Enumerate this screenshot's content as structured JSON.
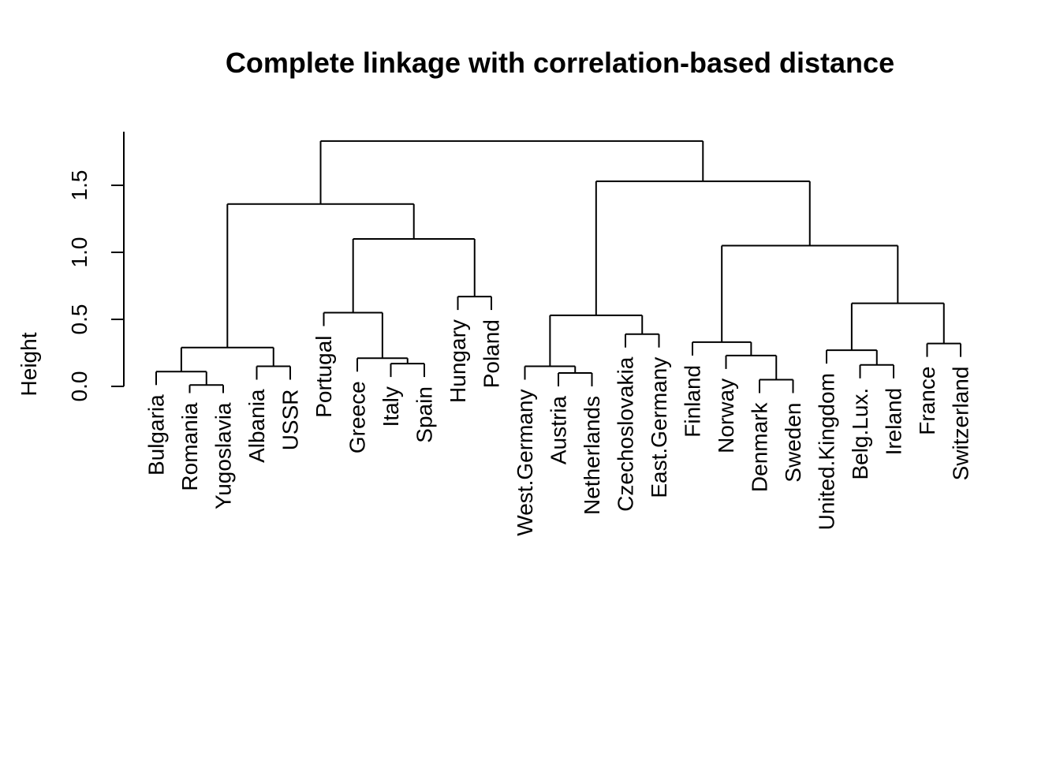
{
  "chart_data": {
    "type": "dendrogram",
    "title": "Complete linkage with correlation-based distance",
    "ylabel": "Height",
    "xlabel": "",
    "ylim": [
      0,
      1.9
    ],
    "y_ticks": [
      {
        "value": 0.0,
        "label": "0.0"
      },
      {
        "value": 0.5,
        "label": "0.5"
      },
      {
        "value": 1.0,
        "label": "1.0"
      },
      {
        "value": 1.5,
        "label": "1.5"
      }
    ],
    "leaves": [
      "Bulgaria",
      "Romania",
      "Yugoslavia",
      "Albania",
      "USSR",
      "Portugal",
      "Greece",
      "Italy",
      "Spain",
      "Hungary",
      "Poland",
      "West.Germany",
      "Austria",
      "Netherlands",
      "Czechoslovakia",
      "East.Germany",
      "Finland",
      "Norway",
      "Denmark",
      "Sweden",
      "United.Kingdom",
      "Belg.Lux.",
      "Ireland",
      "France",
      "Switzerland"
    ],
    "merges": [
      {
        "a": "Romania",
        "b": "Yugoslavia",
        "height": 0.01
      },
      {
        "a": "Bulgaria",
        "b": 0,
        "height": 0.11
      },
      {
        "a": "Albania",
        "b": "USSR",
        "height": 0.15
      },
      {
        "a": 1,
        "b": 2,
        "height": 0.29
      },
      {
        "a": "Italy",
        "b": "Spain",
        "height": 0.17
      },
      {
        "a": "Greece",
        "b": 4,
        "height": 0.21
      },
      {
        "a": "Portugal",
        "b": 5,
        "height": 0.55
      },
      {
        "a": "Hungary",
        "b": "Poland",
        "height": 0.67
      },
      {
        "a": 6,
        "b": 7,
        "height": 1.1
      },
      {
        "a": 3,
        "b": 8,
        "height": 1.36
      },
      {
        "a": "Austria",
        "b": "Netherlands",
        "height": 0.1
      },
      {
        "a": "West.Germany",
        "b": 10,
        "height": 0.15
      },
      {
        "a": "Czechoslovakia",
        "b": "East.Germany",
        "height": 0.39
      },
      {
        "a": 11,
        "b": 12,
        "height": 0.53
      },
      {
        "a": "Denmark",
        "b": "Sweden",
        "height": 0.05
      },
      {
        "a": "Norway",
        "b": 14,
        "height": 0.23
      },
      {
        "a": "Finland",
        "b": 15,
        "height": 0.33
      },
      {
        "a": "Belg.Lux.",
        "b": "Ireland",
        "height": 0.16
      },
      {
        "a": "United.Kingdom",
        "b": 17,
        "height": 0.27
      },
      {
        "a": "France",
        "b": "Switzerland",
        "height": 0.32
      },
      {
        "a": 18,
        "b": 19,
        "height": 0.62
      },
      {
        "a": 16,
        "b": 20,
        "height": 1.05
      },
      {
        "a": 13,
        "b": 21,
        "height": 1.53
      },
      {
        "a": 9,
        "b": 22,
        "height": 1.83
      }
    ],
    "colors": {
      "line": "#000000",
      "background": "#ffffff"
    }
  }
}
